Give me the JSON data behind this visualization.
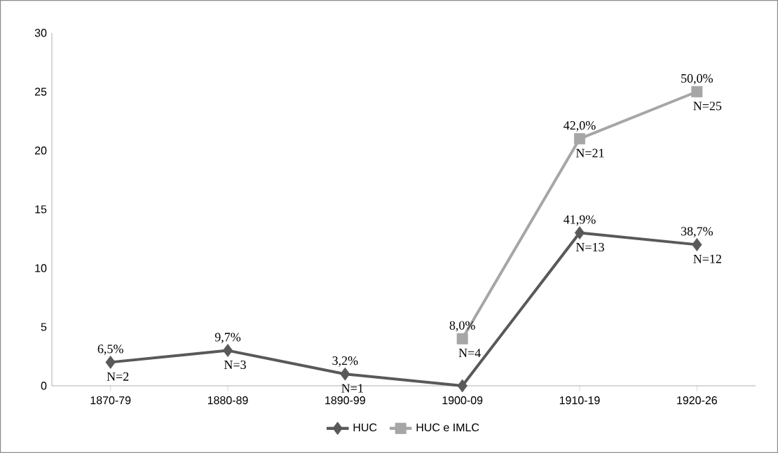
{
  "chart_data": {
    "type": "line",
    "categories": [
      "1870-79",
      "1880-89",
      "1890-99",
      "1900-09",
      "1910-19",
      "1920-26"
    ],
    "series": [
      {
        "name": "HUC",
        "color": "#595959",
        "marker": "diamond",
        "values": [
          2,
          3,
          1,
          0,
          13,
          12
        ]
      },
      {
        "name": "HUC e IMLC",
        "color": "#a6a6a6",
        "marker": "square",
        "values": [
          null,
          null,
          null,
          4,
          21,
          25
        ]
      }
    ],
    "ylim": [
      0,
      30
    ],
    "yticks": [
      0,
      5,
      10,
      15,
      20,
      25,
      30
    ],
    "grid": false,
    "legend": "bottom",
    "annotations": [
      {
        "text": "6,5%",
        "x": "1870-79",
        "y": 2
      },
      {
        "text": "N=2",
        "x": "1870-79",
        "y": 2
      },
      {
        "text": "9,7%",
        "x": "1880-89",
        "y": 3
      },
      {
        "text": "N=3",
        "x": "1880-89",
        "y": 3
      },
      {
        "text": "3,2%",
        "x": "1890-99",
        "y": 1
      },
      {
        "text": "N=1",
        "x": "1890-99",
        "y": 1
      },
      {
        "text": "8,0%",
        "x": "1900-09",
        "y": 4
      },
      {
        "text": "N=4",
        "x": "1900-09",
        "y": 4
      },
      {
        "text": "41,9%",
        "x": "1910-19",
        "y": 13
      },
      {
        "text": "N=13",
        "x": "1910-19",
        "y": 13
      },
      {
        "text": "42,0%",
        "x": "1910-19",
        "y": 21
      },
      {
        "text": "N=21",
        "x": "1910-19",
        "y": 21
      },
      {
        "text": "38,7%",
        "x": "1920-26",
        "y": 12
      },
      {
        "text": "N=12",
        "x": "1920-26",
        "y": 12
      },
      {
        "text": "50,0%",
        "x": "1920-26",
        "y": 25
      },
      {
        "text": "N=25",
        "x": "1920-26",
        "y": 25
      }
    ]
  }
}
